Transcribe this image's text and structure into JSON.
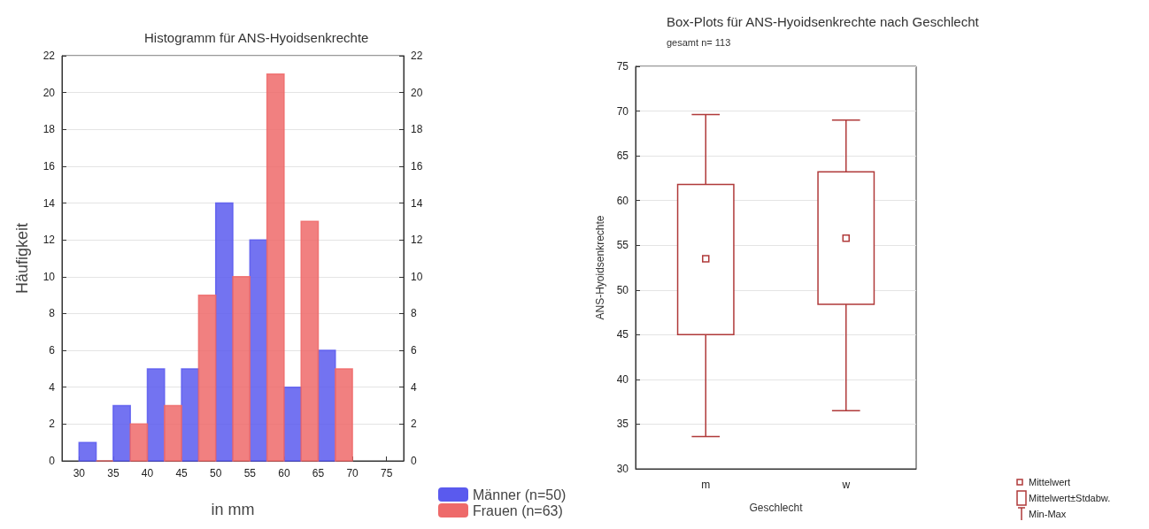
{
  "chart_data": [
    {
      "type": "histogram",
      "title": "Histogramm für ANS-Hyoidsenkrechte",
      "xlabel": "in mm",
      "ylabel": "Häufigkeit",
      "bins": [
        30,
        35,
        40,
        45,
        50,
        55,
        60,
        65,
        70
      ],
      "series": [
        {
          "name": "Männer (n=50)",
          "color": "#5a5aee",
          "values": [
            1,
            3,
            5,
            5,
            14,
            12,
            4,
            6
          ]
        },
        {
          "name": "Frauen (n=63)",
          "color": "#ee6a6a",
          "values": [
            0,
            2,
            3,
            9,
            10,
            21,
            13,
            5
          ]
        }
      ],
      "xlim": [
        27.5,
        77.5
      ],
      "xticks": [
        30,
        35,
        40,
        45,
        50,
        55,
        60,
        65,
        70,
        75
      ],
      "ylim": [
        0,
        22
      ],
      "yticks": [
        0,
        2,
        4,
        6,
        8,
        10,
        12,
        14,
        16,
        18,
        20,
        22
      ],
      "y2lim": [
        0,
        22
      ],
      "y2ticks": [
        0,
        2,
        4,
        6,
        8,
        10,
        12,
        14,
        16,
        18,
        20,
        22
      ],
      "grid": "y",
      "legend": "bottom right"
    },
    {
      "type": "box",
      "title": "Box-Plots für ANS-Hyoidsenkrechte nach Geschlecht",
      "subtitle": "gesamt n= 113",
      "xlabel": "Geschlecht",
      "ylabel": "ANS-Hyoidsenkrechte",
      "categories": [
        "m",
        "w"
      ],
      "color": "#b03a3a",
      "boxes": [
        {
          "low": 33.6,
          "q1": 45,
          "q3": 61.8,
          "high": 69.6,
          "mean": 53.5
        },
        {
          "low": 36.5,
          "q1": 48.4,
          "q3": 63.2,
          "high": 69,
          "mean": 55.8
        }
      ],
      "ylim": [
        30,
        75
      ],
      "yticks": [
        30,
        35,
        40,
        45,
        50,
        55,
        60,
        65,
        70,
        75
      ],
      "grid": "y",
      "annotations": [
        "Mittelwert",
        "Mittelwert±Stdabw.",
        "Min-Max"
      ]
    }
  ]
}
